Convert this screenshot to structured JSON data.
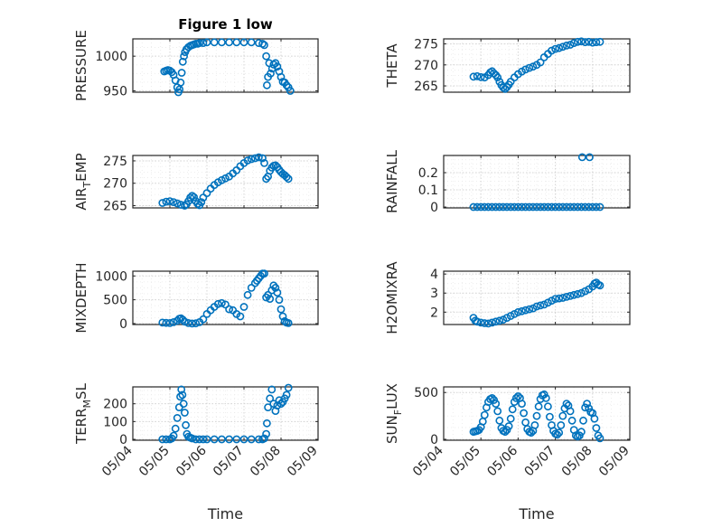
{
  "figure": {
    "title": "Figure 1 low",
    "marker_color": "#0072BD",
    "x_tick_labels": [
      "05/04",
      "05/05",
      "05/06",
      "05/07",
      "05/08",
      "05/09"
    ],
    "x_label": "Time"
  },
  "chart_data": [
    {
      "type": "scatter",
      "ylabel": "PRESSURE",
      "xlim": [
        0,
        5
      ],
      "ylim": [
        948,
        1025
      ],
      "yticks": [
        950,
        1000
      ],
      "ytick_labels": [
        "950",
        "1000"
      ],
      "title": "Figure 1 low",
      "xlabel": "",
      "x": [
        0.85,
        0.9,
        0.95,
        1.0,
        1.05,
        1.1,
        1.15,
        1.2,
        1.23,
        1.26,
        1.29,
        1.32,
        1.35,
        1.38,
        1.41,
        1.45,
        1.5,
        1.55,
        1.6,
        1.65,
        1.7,
        1.75,
        1.8,
        1.9,
        2.0,
        2.2,
        2.4,
        2.6,
        2.8,
        3.0,
        3.2,
        3.4,
        3.5,
        3.55,
        3.6,
        3.62,
        3.65,
        3.68,
        3.72,
        3.76,
        3.8,
        3.85,
        3.9,
        3.95,
        4.0,
        4.05,
        4.1,
        4.15,
        4.2,
        4.25
      ],
      "y": [
        978,
        979,
        980,
        979,
        977,
        973,
        965,
        955,
        948,
        952,
        962,
        976,
        992,
        1000,
        1006,
        1010,
        1013,
        1015,
        1016,
        1017,
        1018,
        1018,
        1019,
        1019,
        1020,
        1020,
        1020,
        1020,
        1020,
        1020,
        1020,
        1019,
        1018,
        1016,
        1000,
        958,
        970,
        990,
        975,
        982,
        988,
        990,
        985,
        978,
        970,
        963,
        962,
        958,
        955,
        950
      ]
    },
    {
      "type": "scatter",
      "ylabel": "THETA",
      "xlim": [
        0,
        5
      ],
      "ylim": [
        263.5,
        276.2
      ],
      "yticks": [
        265,
        270,
        275
      ],
      "ytick_labels": [
        "265",
        "270",
        "275"
      ],
      "xlabel": "",
      "x": [
        0.8,
        0.9,
        1.0,
        1.1,
        1.2,
        1.25,
        1.3,
        1.35,
        1.4,
        1.45,
        1.5,
        1.55,
        1.6,
        1.65,
        1.7,
        1.75,
        1.8,
        1.9,
        2.0,
        2.1,
        2.2,
        2.3,
        2.4,
        2.5,
        2.6,
        2.7,
        2.8,
        2.9,
        3.0,
        3.1,
        3.2,
        3.3,
        3.4,
        3.5,
        3.6,
        3.7,
        3.8,
        3.9,
        4.0,
        4.1,
        4.2
      ],
      "y": [
        267.2,
        267.3,
        267.1,
        267.0,
        267.6,
        268.2,
        268.5,
        268.0,
        267.6,
        267.0,
        266.0,
        265.2,
        264.6,
        264.3,
        264.7,
        265.3,
        266.0,
        267.0,
        267.8,
        268.4,
        268.9,
        269.3,
        269.6,
        270.0,
        270.6,
        271.8,
        272.6,
        273.4,
        273.8,
        274.0,
        274.3,
        274.6,
        274.8,
        275.2,
        275.5,
        275.6,
        275.4,
        275.5,
        275.3,
        275.4,
        275.5
      ]
    },
    {
      "type": "scatter",
      "ylabel": "AIR_TEMP",
      "ylabel_parts": [
        "AIR",
        "T",
        "EMP"
      ],
      "xlim": [
        0,
        5
      ],
      "ylim": [
        264.5,
        276.2
      ],
      "yticks": [
        265,
        270,
        275
      ],
      "ytick_labels": [
        "265",
        "270",
        "275"
      ],
      "xlabel": "",
      "x": [
        0.8,
        0.9,
        1.0,
        1.1,
        1.2,
        1.3,
        1.4,
        1.45,
        1.5,
        1.55,
        1.6,
        1.65,
        1.7,
        1.75,
        1.8,
        1.85,
        1.9,
        2.0,
        2.1,
        2.2,
        2.3,
        2.4,
        2.5,
        2.6,
        2.7,
        2.8,
        2.9,
        3.0,
        3.1,
        3.2,
        3.3,
        3.4,
        3.5,
        3.55,
        3.6,
        3.65,
        3.7,
        3.75,
        3.8,
        3.85,
        3.9,
        3.95,
        4.0,
        4.05,
        4.1,
        4.15,
        4.2
      ],
      "y": [
        265.6,
        265.9,
        266.0,
        265.8,
        265.5,
        265.2,
        265.0,
        265.3,
        266.0,
        266.8,
        267.2,
        266.9,
        266.0,
        265.4,
        265.1,
        265.8,
        266.8,
        267.8,
        268.8,
        269.6,
        270.2,
        270.7,
        271.1,
        271.5,
        272.2,
        272.9,
        273.8,
        274.5,
        275.1,
        275.4,
        275.6,
        275.8,
        275.6,
        274.5,
        271.0,
        271.5,
        272.8,
        273.5,
        273.9,
        274.0,
        273.6,
        273.0,
        272.5,
        272.1,
        271.8,
        271.4,
        271.0
      ]
    },
    {
      "type": "scatter",
      "ylabel": "RAINFALL",
      "xlim": [
        0,
        5
      ],
      "ylim": [
        -0.005,
        0.3
      ],
      "yticks": [
        0,
        0.1,
        0.2
      ],
      "ytick_labels": [
        "0",
        "0.1",
        "0.2"
      ],
      "xlabel": "",
      "x": [
        0.8,
        0.9,
        1.0,
        1.1,
        1.2,
        1.3,
        1.4,
        1.5,
        1.6,
        1.7,
        1.8,
        1.9,
        2.0,
        2.1,
        2.2,
        2.3,
        2.4,
        2.5,
        2.6,
        2.7,
        2.8,
        2.9,
        3.0,
        3.1,
        3.2,
        3.3,
        3.4,
        3.5,
        3.6,
        3.7,
        3.8,
        3.9,
        4.0,
        4.1,
        4.2,
        3.72,
        3.92
      ],
      "y": [
        0,
        0,
        0,
        0,
        0,
        0,
        0,
        0,
        0,
        0,
        0,
        0,
        0,
        0,
        0,
        0,
        0,
        0,
        0,
        0,
        0,
        0,
        0,
        0,
        0,
        0,
        0,
        0,
        0,
        0,
        0,
        0,
        0,
        0,
        0,
        0.29,
        0.29
      ]
    },
    {
      "type": "scatter",
      "ylabel": "MIXDEPTH",
      "xlim": [
        0,
        5
      ],
      "ylim": [
        -20,
        1100
      ],
      "yticks": [
        0,
        500,
        1000
      ],
      "ytick_labels": [
        "0",
        "500",
        "1000"
      ],
      "xlabel": "",
      "x": [
        0.8,
        0.9,
        1.0,
        1.1,
        1.2,
        1.25,
        1.3,
        1.35,
        1.4,
        1.5,
        1.6,
        1.7,
        1.8,
        1.9,
        2.0,
        2.1,
        2.2,
        2.3,
        2.4,
        2.5,
        2.6,
        2.7,
        2.8,
        2.9,
        3.0,
        3.1,
        3.2,
        3.3,
        3.35,
        3.4,
        3.45,
        3.5,
        3.55,
        3.6,
        3.65,
        3.7,
        3.75,
        3.8,
        3.85,
        3.9,
        3.95,
        4.0,
        4.05,
        4.1,
        4.15,
        4.2
      ],
      "y": [
        20,
        15,
        10,
        30,
        60,
        100,
        110,
        80,
        40,
        10,
        0,
        5,
        30,
        90,
        200,
        280,
        350,
        410,
        430,
        400,
        300,
        280,
        200,
        150,
        350,
        600,
        750,
        850,
        900,
        950,
        1000,
        1050,
        1050,
        550,
        600,
        520,
        700,
        800,
        750,
        650,
        500,
        300,
        150,
        50,
        20,
        10
      ]
    },
    {
      "type": "scatter",
      "ylabel": "H2OMIXRA",
      "xlim": [
        0,
        5
      ],
      "ylim": [
        1.35,
        4.15
      ],
      "yticks": [
        2,
        3,
        4
      ],
      "ytick_labels": [
        "2",
        "3",
        "4"
      ],
      "xlabel": "",
      "x": [
        0.8,
        0.85,
        0.9,
        1.0,
        1.1,
        1.2,
        1.3,
        1.4,
        1.5,
        1.6,
        1.7,
        1.8,
        1.9,
        2.0,
        2.1,
        2.2,
        2.3,
        2.4,
        2.5,
        2.6,
        2.7,
        2.8,
        2.9,
        3.0,
        3.1,
        3.2,
        3.3,
        3.4,
        3.5,
        3.6,
        3.7,
        3.8,
        3.9,
        4.0,
        4.05,
        4.1,
        4.15,
        4.2
      ],
      "y": [
        1.7,
        1.55,
        1.5,
        1.45,
        1.42,
        1.4,
        1.45,
        1.5,
        1.55,
        1.6,
        1.7,
        1.8,
        1.9,
        2.0,
        2.05,
        2.1,
        2.15,
        2.2,
        2.3,
        2.35,
        2.4,
        2.5,
        2.6,
        2.7,
        2.72,
        2.75,
        2.8,
        2.85,
        2.9,
        2.95,
        3.0,
        3.1,
        3.2,
        3.35,
        3.5,
        3.55,
        3.45,
        3.4
      ]
    },
    {
      "type": "scatter",
      "ylabel": "TERR_MSL",
      "ylabel_parts": [
        "TERR",
        "M",
        "SL"
      ],
      "xlim": [
        0,
        5
      ],
      "ylim": [
        -5,
        295
      ],
      "yticks": [
        0,
        100,
        200
      ],
      "ytick_labels": [
        "0",
        "100",
        "200"
      ],
      "xlabel": "Time",
      "x": [
        0.8,
        0.9,
        1.0,
        1.05,
        1.1,
        1.15,
        1.2,
        1.25,
        1.28,
        1.31,
        1.34,
        1.37,
        1.4,
        1.43,
        1.46,
        1.5,
        1.55,
        1.6,
        1.7,
        1.8,
        1.9,
        2.0,
        2.2,
        2.4,
        2.6,
        2.8,
        3.0,
        3.2,
        3.4,
        3.5,
        3.55,
        3.6,
        3.62,
        3.65,
        3.7,
        3.75,
        3.8,
        3.85,
        3.9,
        3.95,
        4.0,
        4.05,
        4.1,
        4.15,
        4.2
      ],
      "y": [
        0,
        0,
        0,
        5,
        20,
        60,
        120,
        180,
        240,
        280,
        250,
        200,
        150,
        80,
        30,
        15,
        10,
        5,
        0,
        0,
        0,
        0,
        0,
        0,
        0,
        0,
        0,
        0,
        0,
        0,
        5,
        30,
        90,
        180,
        230,
        280,
        200,
        160,
        190,
        220,
        200,
        210,
        230,
        250,
        290
      ]
    },
    {
      "type": "scatter",
      "ylabel": "SUN_FLUX",
      "ylabel_parts": [
        "SUN",
        "F",
        "LUX"
      ],
      "xlim": [
        0,
        5
      ],
      "ylim": [
        -10,
        560
      ],
      "yticks": [
        0,
        500
      ],
      "ytick_labels": [
        "0",
        "500"
      ],
      "xlabel": "Time",
      "x": [
        0.8,
        0.85,
        0.9,
        0.95,
        1.0,
        1.05,
        1.1,
        1.15,
        1.2,
        1.25,
        1.3,
        1.35,
        1.4,
        1.45,
        1.5,
        1.55,
        1.6,
        1.65,
        1.7,
        1.75,
        1.8,
        1.85,
        1.9,
        1.95,
        2.0,
        2.05,
        2.1,
        2.15,
        2.2,
        2.25,
        2.3,
        2.35,
        2.4,
        2.45,
        2.5,
        2.55,
        2.6,
        2.65,
        2.7,
        2.75,
        2.8,
        2.85,
        2.9,
        2.95,
        3.0,
        3.05,
        3.1,
        3.15,
        3.2,
        3.25,
        3.3,
        3.35,
        3.4,
        3.45,
        3.5,
        3.55,
        3.6,
        3.65,
        3.7,
        3.75,
        3.8,
        3.85,
        3.9,
        3.95,
        4.0,
        4.05,
        4.1,
        4.15,
        4.2
      ],
      "y": [
        80,
        85,
        90,
        100,
        130,
        190,
        260,
        340,
        400,
        430,
        440,
        420,
        380,
        300,
        200,
        120,
        90,
        80,
        100,
        140,
        220,
        320,
        400,
        440,
        460,
        440,
        380,
        280,
        180,
        110,
        80,
        70,
        90,
        150,
        250,
        350,
        430,
        470,
        480,
        440,
        350,
        240,
        150,
        90,
        60,
        50,
        70,
        150,
        250,
        330,
        380,
        360,
        300,
        200,
        100,
        40,
        30,
        40,
        80,
        200,
        340,
        380,
        330,
        290,
        280,
        220,
        120,
        40,
        10
      ]
    }
  ]
}
